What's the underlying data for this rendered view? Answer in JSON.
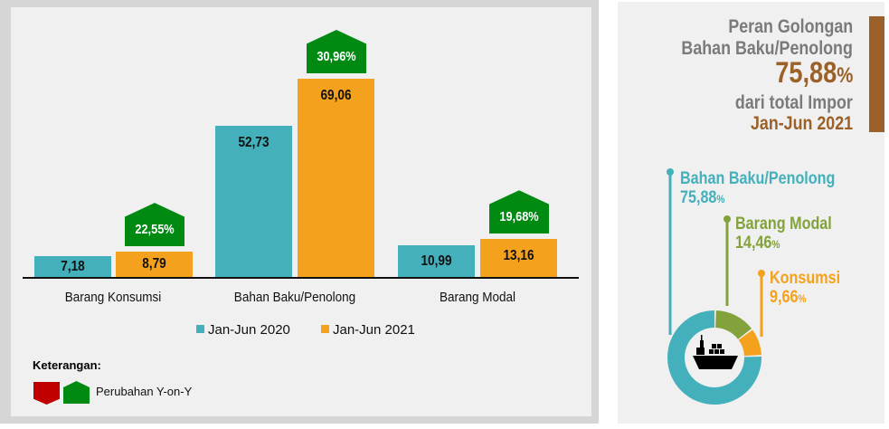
{
  "chart_data": {
    "type": "bar",
    "categories": [
      "Barang Konsumsi",
      "Bahan Baku/Penolong",
      "Barang Modal"
    ],
    "series": [
      {
        "name": "Jan-Jun 2020",
        "values": [
          7.18,
          52.73,
          10.99
        ],
        "labels": [
          "7,18",
          "52,73",
          "10,99"
        ],
        "color": "#43b0bb"
      },
      {
        "name": "Jan-Jun 2021",
        "values": [
          8.79,
          69.06,
          13.16
        ],
        "labels": [
          "8,79",
          "69,06",
          "13,16"
        ],
        "color": "#f4a11d"
      }
    ],
    "yoy_change": [
      "22,55%",
      "30,96%",
      "19,68%"
    ],
    "yoy_color_up": "#008a12",
    "yoy_color_down": "#c00000",
    "ylim": [
      0,
      75
    ],
    "grid": false,
    "legend": "bottom"
  },
  "keterangan": {
    "title": "Keterangan:",
    "label": "Perubahan Y-on-Y"
  },
  "side": {
    "line1": "Peran Golongan",
    "line2": "Bahan Baku/Penolong",
    "pct": "75,88",
    "pct_sign": "%",
    "line3": "dari total Impor",
    "line4": "Jan-Jun 2021",
    "accent": "#9b6128"
  },
  "donut": [
    {
      "name": "Bahan Baku/Penolong",
      "value": 75.88,
      "label": "75,88",
      "color": "#43b0bb"
    },
    {
      "name": "Barang Modal",
      "value": 14.46,
      "label": "14,46",
      "color": "#84a23c"
    },
    {
      "name": "Konsumsi",
      "value": 9.66,
      "label": "9,66",
      "color": "#f4a11d"
    }
  ],
  "pct_sign": "%",
  "icons": {
    "center": "cargo-ship-icon"
  }
}
